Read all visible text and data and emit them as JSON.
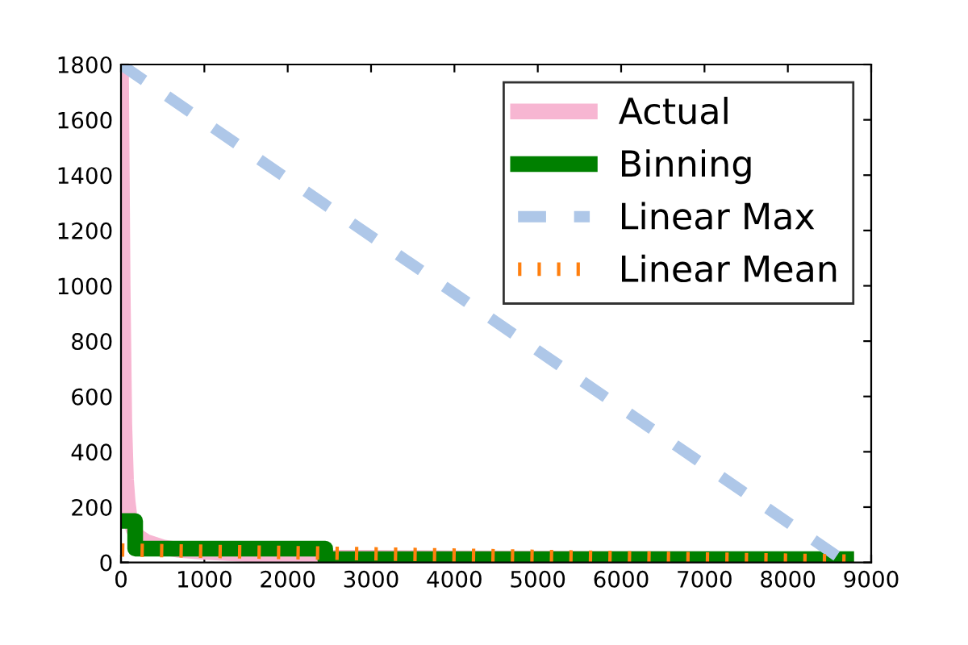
{
  "chart_data": {
    "type": "line",
    "xlim": [
      0,
      9000
    ],
    "ylim": [
      0,
      1800
    ],
    "xticks": [
      0,
      1000,
      2000,
      3000,
      4000,
      5000,
      6000,
      7000,
      8000,
      9000
    ],
    "yticks": [
      0,
      200,
      400,
      600,
      800,
      1000,
      1200,
      1400,
      1600,
      1800
    ],
    "grid": false,
    "legend": "top right",
    "series": [
      {
        "name": "Actual",
        "color": "#f7b6d2",
        "line_style": "solid",
        "x": [
          0,
          20,
          40,
          60,
          80,
          100,
          150,
          200,
          300,
          500,
          700,
          1000,
          1500,
          2000,
          2450,
          2500,
          3000,
          4000,
          5000,
          6000,
          7000,
          8000,
          8700
        ],
        "values": [
          1800,
          1000,
          500,
          300,
          220,
          170,
          120,
          95,
          75,
          55,
          45,
          38,
          30,
          25,
          22,
          18,
          17,
          15,
          14,
          13,
          12,
          11,
          10
        ]
      },
      {
        "name": "Binning",
        "color": "#008000",
        "line_style": "solid",
        "type": "step",
        "x": [
          0,
          170,
          2450,
          8700
        ],
        "values": [
          150,
          50,
          12,
          12
        ]
      },
      {
        "name": "Linear Max",
        "color": "#aec7e8",
        "line_style": "dashed",
        "x": [
          0,
          8700
        ],
        "values": [
          1800,
          0
        ]
      },
      {
        "name": "Linear Mean",
        "color": "#ff7f0e",
        "line_style": "dotted",
        "x": [
          0,
          8700
        ],
        "values": [
          45,
          5
        ]
      }
    ]
  }
}
